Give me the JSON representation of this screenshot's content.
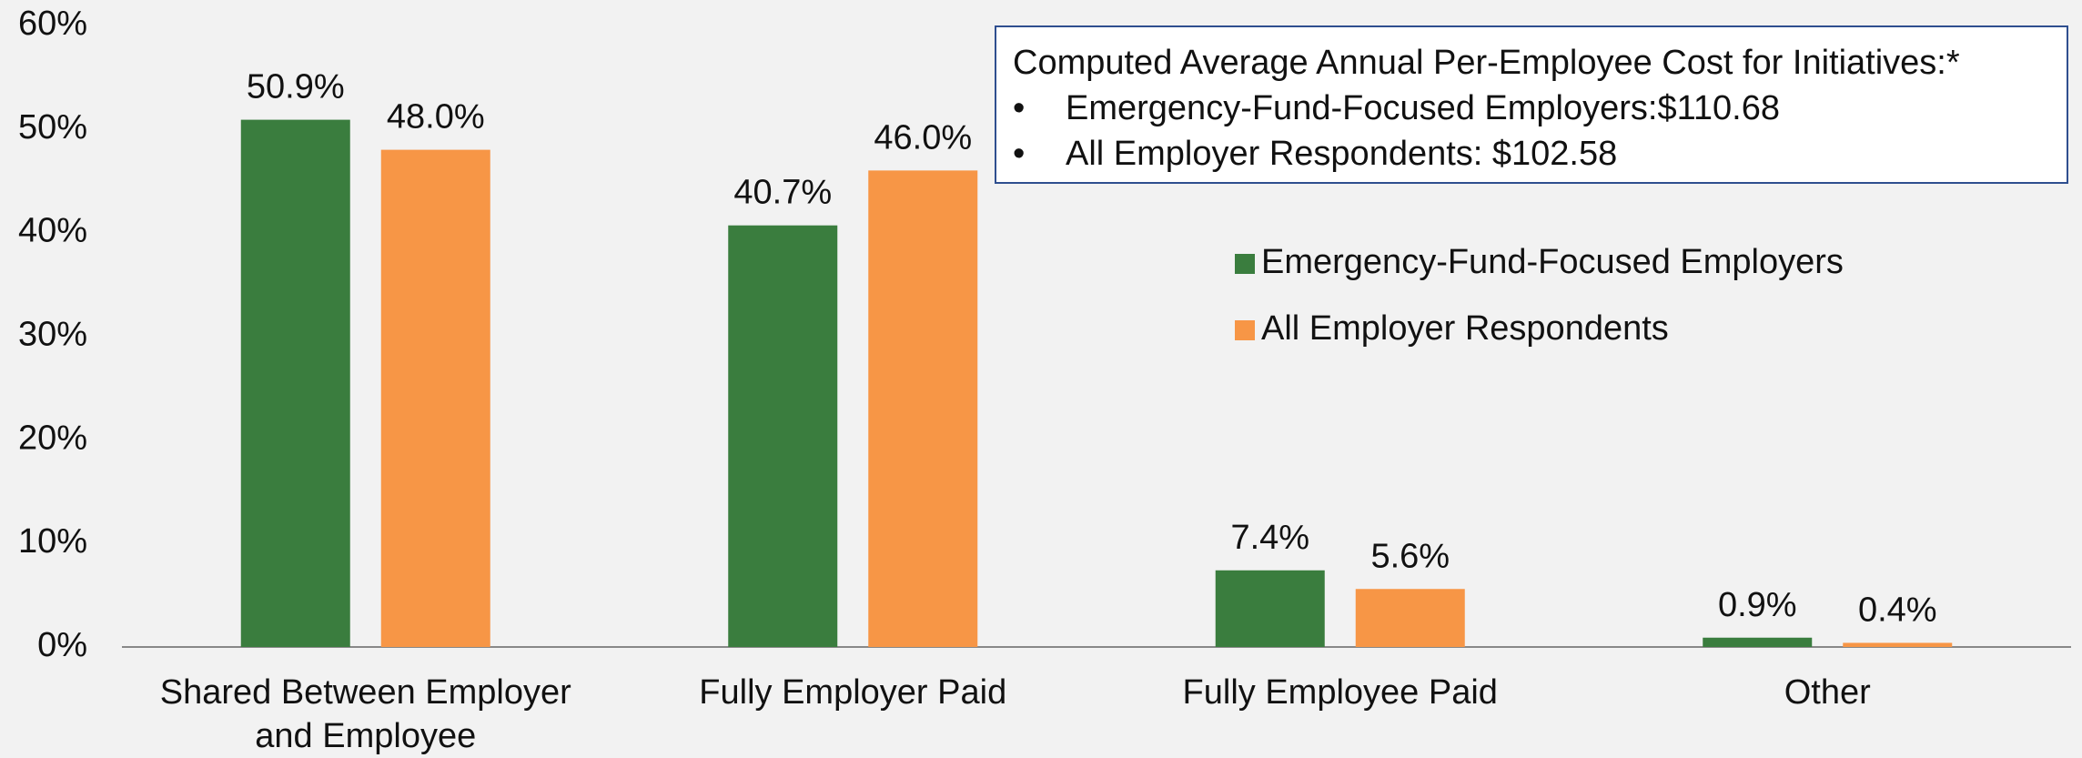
{
  "chart_data": {
    "type": "bar",
    "categories": [
      "Shared Between Employer and Employee",
      "Fully Employer Paid",
      "Fully Employee Paid",
      "Other"
    ],
    "series": [
      {
        "name": "Emergency-Fund-Focused Employers",
        "color": "#3a7d3e",
        "values": [
          50.9,
          40.7,
          7.4,
          0.9
        ],
        "value_labels": [
          "50.9%",
          "40.7%",
          "7.4%",
          "0.9%"
        ]
      },
      {
        "name": "All Employer Respondents",
        "color": "#f79646",
        "values": [
          48.0,
          46.0,
          5.6,
          0.4
        ],
        "value_labels": [
          "48.0%",
          "46.0%",
          "5.6%",
          "0.4%"
        ]
      }
    ],
    "ylim": [
      0,
      60
    ],
    "yticks": [
      {
        "value": 0,
        "label": "0%"
      },
      {
        "value": 10,
        "label": "10%"
      },
      {
        "value": 20,
        "label": "20%"
      },
      {
        "value": 30,
        "label": "30%"
      },
      {
        "value": 40,
        "label": "40%"
      },
      {
        "value": 50,
        "label": "50%"
      },
      {
        "value": 60,
        "label": "60%"
      }
    ],
    "annotation": {
      "title": "Computed Average Annual Per-Employee Cost for Initiatives:*",
      "items": [
        "Emergency-Fund-Focused Employers:$110.68",
        "All Employer Respondents: $102.58"
      ]
    }
  }
}
